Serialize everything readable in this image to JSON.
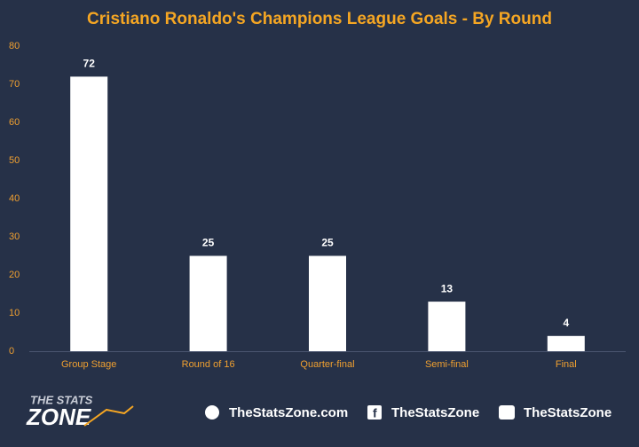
{
  "chart_data": {
    "type": "bar",
    "title": "Cristiano Ronaldo's Champions League Goals - By Round",
    "categories": [
      "Group Stage",
      "Round of 16",
      "Quarter-final",
      "Semi-final",
      "Final"
    ],
    "values": [
      72,
      25,
      25,
      13,
      4
    ],
    "color": "#ffffff",
    "ylim": [
      0,
      80
    ],
    "yticks": [
      0,
      10,
      20,
      30,
      40,
      50,
      60,
      70,
      80
    ],
    "grid": false
  },
  "footer": {
    "logo_top": "THE STATS",
    "logo_bottom": "ZONE",
    "website": "TheStatsZone.com",
    "facebook": "TheStatsZone",
    "twitter": "TheStatsZone"
  }
}
